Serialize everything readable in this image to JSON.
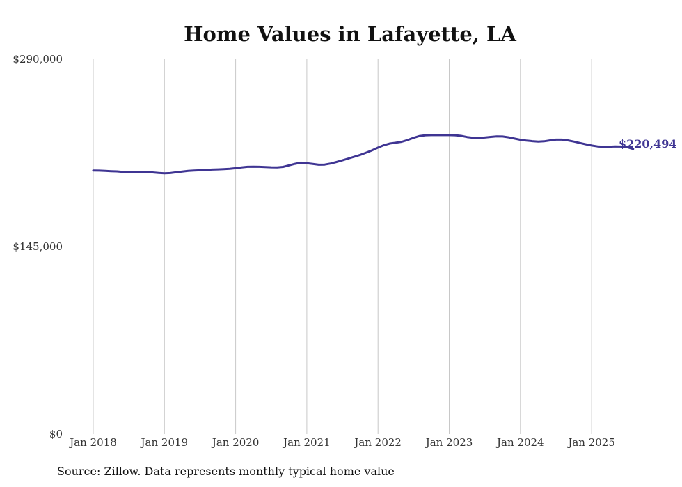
{
  "chart_data": {
    "type": "line",
    "title": "Home Values in Lafayette, LA",
    "xlabel": "",
    "ylabel": "",
    "ylim": [
      0,
      290000
    ],
    "y_ticks": [
      "$290,000",
      "$145,000",
      "$0"
    ],
    "x_ticks": [
      "Jan 2018",
      "Jan 2019",
      "Jan 2020",
      "Jan 2021",
      "Jan 2022",
      "Jan 2023",
      "Jan 2024",
      "Jan 2025"
    ],
    "grid": "vertical",
    "line_color": "#3f3593",
    "end_label": "$220,494",
    "series": [
      {
        "values": [
          203900,
          203800,
          203600,
          203400,
          203200,
          202800,
          202500,
          202600,
          202700,
          202800,
          202400,
          202000,
          201700,
          201900,
          202500,
          203100,
          203600,
          203900,
          204100,
          204300,
          204600,
          204800,
          205000,
          205200,
          205700,
          206300,
          206800,
          206900,
          206800,
          206600,
          206400,
          206300,
          206700,
          207900,
          209100,
          210000,
          209600,
          209000,
          208400,
          208500,
          209300,
          210500,
          211800,
          213200,
          214600,
          216000,
          217700,
          219500,
          221600,
          223500,
          224800,
          225400,
          226100,
          227500,
          229200,
          230600,
          231200,
          231300,
          231300,
          231300,
          231300,
          231200,
          230700,
          229800,
          229200,
          229000,
          229400,
          229900,
          230300,
          230200,
          229600,
          228600,
          227700,
          227100,
          226600,
          226300,
          226500,
          227200,
          227800,
          227800,
          227200,
          226300,
          225200,
          224200,
          223200,
          222500,
          222200,
          222300,
          222500,
          222400,
          221900,
          220494
        ]
      }
    ],
    "source": "Source: Zillow. Data represents monthly typical home value"
  }
}
